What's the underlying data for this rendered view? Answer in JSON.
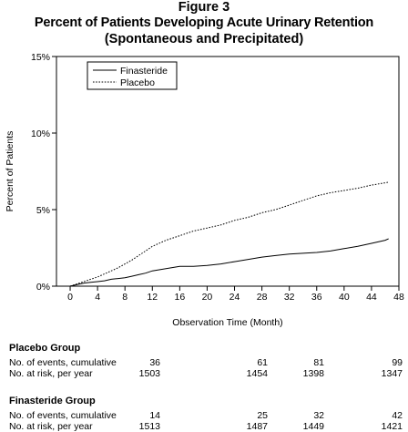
{
  "figure": {
    "label": "Figure 3",
    "title_line1": "Percent of Patients Developing Acute Urinary Retention",
    "title_line2": "(Spontaneous and Precipitated)"
  },
  "chart_data": {
    "type": "line",
    "xlabel": "Observation Time (Month)",
    "ylabel": "Percent of Patients",
    "xlim": [
      -2,
      48
    ],
    "ylim": [
      0,
      15
    ],
    "x_ticks": [
      0,
      4,
      8,
      12,
      16,
      20,
      24,
      28,
      32,
      36,
      40,
      44,
      48
    ],
    "y_ticks": [
      0,
      5,
      10,
      15
    ],
    "y_tick_labels": [
      "0%",
      "5%",
      "10%",
      "15%"
    ],
    "legend_position": "top-left",
    "grid": false,
    "series": [
      {
        "name": "Finasteride",
        "style": "solid",
        "points": [
          [
            0,
            0
          ],
          [
            1,
            0.1
          ],
          [
            2,
            0.2
          ],
          [
            3,
            0.25
          ],
          [
            4,
            0.3
          ],
          [
            5,
            0.35
          ],
          [
            6,
            0.45
          ],
          [
            7,
            0.5
          ],
          [
            8,
            0.55
          ],
          [
            9,
            0.65
          ],
          [
            10,
            0.75
          ],
          [
            11,
            0.85
          ],
          [
            12,
            1.0
          ],
          [
            14,
            1.15
          ],
          [
            16,
            1.3
          ],
          [
            18,
            1.3
          ],
          [
            20,
            1.35
          ],
          [
            22,
            1.45
          ],
          [
            24,
            1.6
          ],
          [
            26,
            1.75
          ],
          [
            28,
            1.9
          ],
          [
            30,
            2.0
          ],
          [
            32,
            2.1
          ],
          [
            34,
            2.15
          ],
          [
            36,
            2.2
          ],
          [
            38,
            2.3
          ],
          [
            40,
            2.45
          ],
          [
            42,
            2.6
          ],
          [
            44,
            2.8
          ],
          [
            46,
            3.0
          ],
          [
            46.5,
            3.1
          ]
        ]
      },
      {
        "name": "Placebo",
        "style": "dotted",
        "points": [
          [
            0,
            0
          ],
          [
            1,
            0.15
          ],
          [
            2,
            0.3
          ],
          [
            3,
            0.45
          ],
          [
            4,
            0.6
          ],
          [
            5,
            0.8
          ],
          [
            6,
            1.0
          ],
          [
            7,
            1.2
          ],
          [
            8,
            1.45
          ],
          [
            9,
            1.7
          ],
          [
            10,
            2.0
          ],
          [
            11,
            2.3
          ],
          [
            12,
            2.6
          ],
          [
            14,
            3.0
          ],
          [
            16,
            3.3
          ],
          [
            18,
            3.6
          ],
          [
            20,
            3.8
          ],
          [
            22,
            4.0
          ],
          [
            24,
            4.3
          ],
          [
            26,
            4.5
          ],
          [
            28,
            4.8
          ],
          [
            30,
            5.0
          ],
          [
            32,
            5.3
          ],
          [
            34,
            5.6
          ],
          [
            36,
            5.9
          ],
          [
            38,
            6.1
          ],
          [
            40,
            6.25
          ],
          [
            42,
            6.4
          ],
          [
            44,
            6.6
          ],
          [
            46,
            6.75
          ],
          [
            46.5,
            6.8
          ]
        ]
      }
    ]
  },
  "risk_table": {
    "columns_months": [
      0,
      12,
      24,
      36
    ],
    "groups": [
      {
        "name": "Placebo Group",
        "rows": [
          {
            "label": "No. of events, cumulative",
            "values": [
              "36",
              "61",
              "81",
              "99"
            ]
          },
          {
            "label": "No. at risk, per year",
            "values": [
              "1503",
              "1454",
              "1398",
              "1347"
            ]
          }
        ]
      },
      {
        "name": "Finasteride Group",
        "rows": [
          {
            "label": "No. of events, cumulative",
            "values": [
              "14",
              "25",
              "32",
              "42"
            ]
          },
          {
            "label": "No. at risk, per year",
            "values": [
              "1513",
              "1487",
              "1449",
              "1421"
            ]
          }
        ]
      }
    ]
  }
}
